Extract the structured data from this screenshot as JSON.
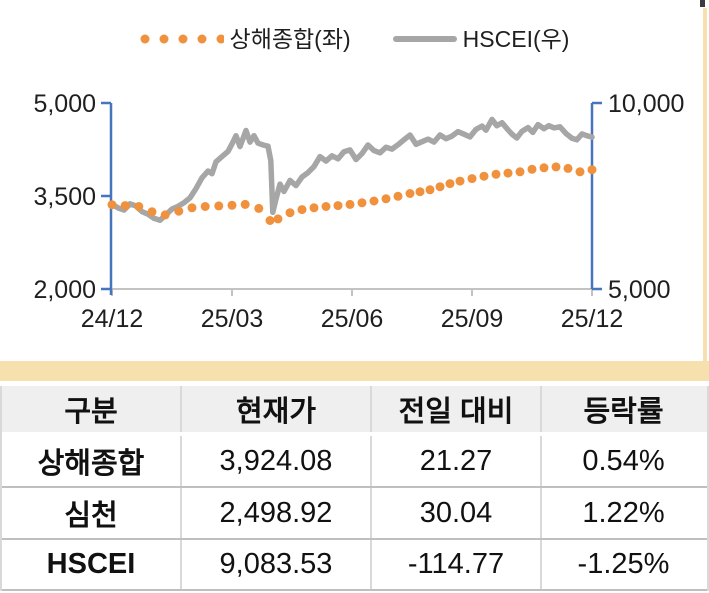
{
  "colors": {
    "orange": "#f0913e",
    "gray_line": "#a6a6a6",
    "axis_blue": "#4775bd",
    "axis_gray": "#c3c3c3",
    "band_tan": "#f5e0ae",
    "header_bg": "#efefef"
  },
  "chart_data": {
    "type": "line",
    "legend_position": "top",
    "grid": false,
    "x_axis": {
      "ticks": [
        "24/12",
        "25/03",
        "25/06",
        "25/09",
        "25/12"
      ],
      "tick_t": [
        0,
        3,
        6,
        9,
        12
      ]
    },
    "y_left": {
      "ticks": [
        "5,000",
        "3,500",
        "2,000"
      ],
      "values": [
        5000,
        3500,
        2000
      ],
      "range": [
        2000,
        5000
      ]
    },
    "y_right": {
      "ticks": [
        "10,000",
        "5,000"
      ],
      "values": [
        10000,
        5000
      ],
      "range": [
        5000,
        10000
      ]
    },
    "series": [
      {
        "name": "HSCEI(우)",
        "axis": "right",
        "style": "line",
        "color": "#a6a6a6",
        "points": [
          [
            0,
            7280
          ],
          [
            0.15,
            7180
          ],
          [
            0.3,
            7120
          ],
          [
            0.45,
            7290
          ],
          [
            0.6,
            7230
          ],
          [
            0.75,
            7080
          ],
          [
            0.9,
            7010
          ],
          [
            1.05,
            6900
          ],
          [
            1.2,
            6850
          ],
          [
            1.35,
            7000
          ],
          [
            1.5,
            7150
          ],
          [
            1.65,
            7220
          ],
          [
            1.8,
            7320
          ],
          [
            1.95,
            7450
          ],
          [
            2.1,
            7700
          ],
          [
            2.25,
            7990
          ],
          [
            2.4,
            8170
          ],
          [
            2.5,
            8100
          ],
          [
            2.6,
            8420
          ],
          [
            2.75,
            8560
          ],
          [
            2.9,
            8700
          ],
          [
            3.0,
            8900
          ],
          [
            3.1,
            9120
          ],
          [
            3.2,
            8830
          ],
          [
            3.35,
            9260
          ],
          [
            3.45,
            8950
          ],
          [
            3.55,
            9120
          ],
          [
            3.65,
            8920
          ],
          [
            3.78,
            8870
          ],
          [
            3.9,
            8840
          ],
          [
            3.97,
            8450
          ],
          [
            4.02,
            7060
          ],
          [
            4.1,
            7420
          ],
          [
            4.2,
            7820
          ],
          [
            4.3,
            7620
          ],
          [
            4.45,
            7920
          ],
          [
            4.6,
            7780
          ],
          [
            4.75,
            8010
          ],
          [
            4.9,
            8130
          ],
          [
            5.05,
            8290
          ],
          [
            5.2,
            8560
          ],
          [
            5.35,
            8440
          ],
          [
            5.5,
            8580
          ],
          [
            5.65,
            8500
          ],
          [
            5.8,
            8690
          ],
          [
            5.95,
            8740
          ],
          [
            6.1,
            8480
          ],
          [
            6.25,
            8640
          ],
          [
            6.4,
            8870
          ],
          [
            6.55,
            8720
          ],
          [
            6.7,
            8660
          ],
          [
            6.85,
            8810
          ],
          [
            7.0,
            8760
          ],
          [
            7.15,
            8880
          ],
          [
            7.3,
            9010
          ],
          [
            7.45,
            9140
          ],
          [
            7.6,
            8890
          ],
          [
            7.75,
            8960
          ],
          [
            7.9,
            9030
          ],
          [
            8.05,
            8950
          ],
          [
            8.2,
            9140
          ],
          [
            8.35,
            9040
          ],
          [
            8.5,
            9110
          ],
          [
            8.65,
            9230
          ],
          [
            8.8,
            9160
          ],
          [
            8.95,
            9090
          ],
          [
            9.1,
            9290
          ],
          [
            9.25,
            9380
          ],
          [
            9.35,
            9270
          ],
          [
            9.5,
            9560
          ],
          [
            9.62,
            9390
          ],
          [
            9.75,
            9470
          ],
          [
            9.9,
            9280
          ],
          [
            10.0,
            9160
          ],
          [
            10.12,
            9060
          ],
          [
            10.25,
            9240
          ],
          [
            10.4,
            9340
          ],
          [
            10.52,
            9210
          ],
          [
            10.65,
            9420
          ],
          [
            10.8,
            9310
          ],
          [
            10.92,
            9390
          ],
          [
            11.05,
            9330
          ],
          [
            11.2,
            9360
          ],
          [
            11.35,
            9180
          ],
          [
            11.5,
            9050
          ],
          [
            11.62,
            9010
          ],
          [
            11.75,
            9170
          ],
          [
            11.87,
            9120
          ],
          [
            12,
            9084
          ]
        ]
      },
      {
        "name": "상해종합(좌)",
        "axis": "left",
        "style": "dots",
        "color": "#f0913e",
        "points": [
          [
            0,
            3360
          ],
          [
            0.33,
            3345
          ],
          [
            0.67,
            3330
          ],
          [
            1.0,
            3245
          ],
          [
            1.33,
            3195
          ],
          [
            1.67,
            3255
          ],
          [
            2.0,
            3310
          ],
          [
            2.33,
            3330
          ],
          [
            2.67,
            3340
          ],
          [
            3.0,
            3350
          ],
          [
            3.33,
            3365
          ],
          [
            3.67,
            3300
          ],
          [
            3.95,
            3105
          ],
          [
            4.15,
            3130
          ],
          [
            4.45,
            3230
          ],
          [
            4.75,
            3280
          ],
          [
            5.05,
            3310
          ],
          [
            5.35,
            3330
          ],
          [
            5.65,
            3345
          ],
          [
            5.95,
            3365
          ],
          [
            6.25,
            3390
          ],
          [
            6.55,
            3420
          ],
          [
            6.85,
            3455
          ],
          [
            7.15,
            3495
          ],
          [
            7.45,
            3540
          ],
          [
            7.7,
            3570
          ],
          [
            7.95,
            3600
          ],
          [
            8.2,
            3650
          ],
          [
            8.45,
            3700
          ],
          [
            8.7,
            3740
          ],
          [
            9.0,
            3780
          ],
          [
            9.3,
            3820
          ],
          [
            9.6,
            3850
          ],
          [
            9.9,
            3870
          ],
          [
            10.2,
            3890
          ],
          [
            10.5,
            3930
          ],
          [
            10.8,
            3955
          ],
          [
            11.1,
            3970
          ],
          [
            11.4,
            3945
          ],
          [
            11.7,
            3890
          ],
          [
            12,
            3924
          ]
        ]
      }
    ]
  },
  "legend": {
    "shanghai_label": "상해종합(좌)",
    "hscei_label": "HSCEI(우)"
  },
  "table": {
    "headers": [
      "구분",
      "현재가",
      "전일 대비",
      "등락률"
    ],
    "rows": [
      [
        "상해종합",
        "3,924.08",
        "21.27",
        "0.54%"
      ],
      [
        "심천",
        "2,498.92",
        "30.04",
        "1.22%"
      ],
      [
        "HSCEI",
        "9,083.53",
        "-114.77",
        "-1.25%"
      ]
    ]
  }
}
